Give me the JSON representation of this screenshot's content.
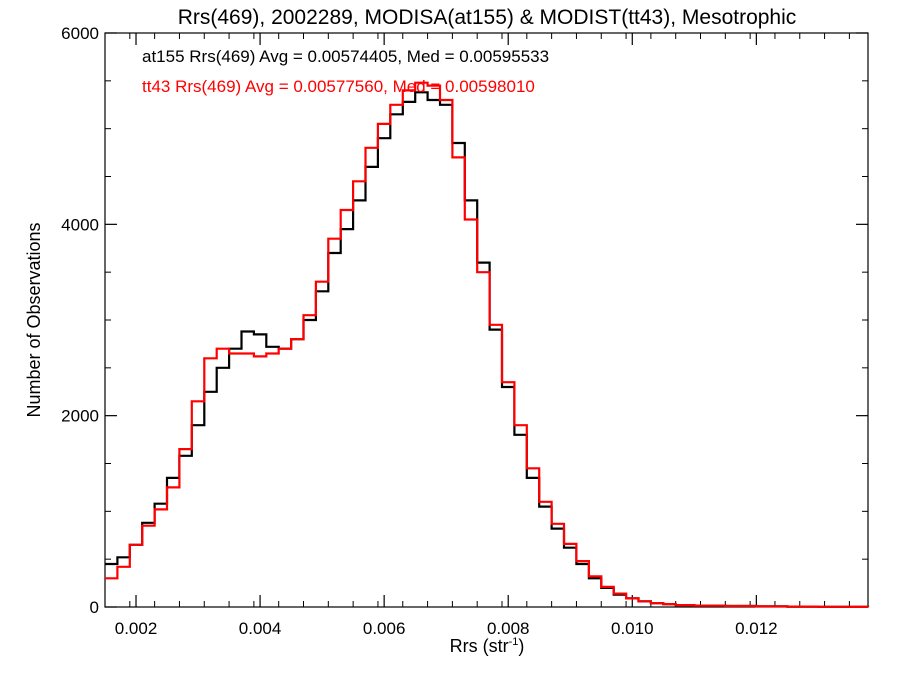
{
  "chart_data": {
    "type": "line",
    "title": "Rrs(469), 2002289, MODISA(at155) & MODIST(tt43), Mesotrophic",
    "xlabel": "Rrs (str",
    "xlabel_sup": "-1",
    "xlabel_end": ")",
    "ylabel": "Number of Observations",
    "xlim": [
      0.0015,
      0.0138
    ],
    "ylim": [
      0,
      6000
    ],
    "x_ticks": [
      0.002,
      0.004,
      0.006,
      0.008,
      0.01,
      0.012
    ],
    "x_tick_labels": [
      "0.002",
      "0.004",
      "0.006",
      "0.008",
      "0.010",
      "0.012"
    ],
    "y_ticks": [
      0,
      2000,
      4000,
      6000
    ],
    "y_tick_labels": [
      "0",
      "2000",
      "4000",
      "6000"
    ],
    "legend_placement": "top-left",
    "series": [
      {
        "name": "at155",
        "legend": "at155 Rrs(469) Avg = 0.00574405, Med = 0.00595533",
        "color": "#000000",
        "points": [
          [
            0.0015,
            450
          ],
          [
            0.0017,
            520
          ],
          [
            0.0019,
            650
          ],
          [
            0.0021,
            880
          ],
          [
            0.0023,
            1080
          ],
          [
            0.0025,
            1350
          ],
          [
            0.0027,
            1580
          ],
          [
            0.0029,
            1900
          ],
          [
            0.0031,
            2250
          ],
          [
            0.0033,
            2500
          ],
          [
            0.0035,
            2700
          ],
          [
            0.0037,
            2880
          ],
          [
            0.0039,
            2850
          ],
          [
            0.0041,
            2720
          ],
          [
            0.0043,
            2700
          ],
          [
            0.0045,
            2800
          ],
          [
            0.0047,
            3000
          ],
          [
            0.0049,
            3300
          ],
          [
            0.0051,
            3700
          ],
          [
            0.0053,
            3950
          ],
          [
            0.0055,
            4250
          ],
          [
            0.0057,
            4600
          ],
          [
            0.0059,
            4900
          ],
          [
            0.0061,
            5150
          ],
          [
            0.0063,
            5280
          ],
          [
            0.0065,
            5380
          ],
          [
            0.0067,
            5300
          ],
          [
            0.0069,
            5250
          ],
          [
            0.0071,
            4850
          ],
          [
            0.0073,
            4250
          ],
          [
            0.0075,
            3600
          ],
          [
            0.0077,
            2900
          ],
          [
            0.0079,
            2300
          ],
          [
            0.0081,
            1800
          ],
          [
            0.0083,
            1350
          ],
          [
            0.0085,
            1050
          ],
          [
            0.0087,
            820
          ],
          [
            0.0089,
            620
          ],
          [
            0.0091,
            450
          ],
          [
            0.0093,
            300
          ],
          [
            0.0095,
            200
          ],
          [
            0.0097,
            130
          ],
          [
            0.0099,
            90
          ],
          [
            0.0101,
            60
          ],
          [
            0.0103,
            40
          ],
          [
            0.0105,
            30
          ],
          [
            0.0107,
            20
          ],
          [
            0.011,
            15
          ],
          [
            0.0115,
            10
          ],
          [
            0.012,
            6
          ],
          [
            0.0125,
            4
          ],
          [
            0.013,
            2
          ],
          [
            0.0135,
            1
          ],
          [
            0.0138,
            0
          ]
        ]
      },
      {
        "name": "tt43",
        "legend": "tt43 Rrs(469) Avg = 0.00577560, Med = 0.00598010",
        "color": "#ff0000",
        "points": [
          [
            0.0015,
            300
          ],
          [
            0.0017,
            420
          ],
          [
            0.0019,
            650
          ],
          [
            0.0021,
            850
          ],
          [
            0.0023,
            1020
          ],
          [
            0.0025,
            1250
          ],
          [
            0.0027,
            1650
          ],
          [
            0.0029,
            2150
          ],
          [
            0.0031,
            2600
          ],
          [
            0.0033,
            2700
          ],
          [
            0.0035,
            2650
          ],
          [
            0.0037,
            2650
          ],
          [
            0.0039,
            2620
          ],
          [
            0.0041,
            2650
          ],
          [
            0.0043,
            2700
          ],
          [
            0.0045,
            2800
          ],
          [
            0.0047,
            3050
          ],
          [
            0.0049,
            3400
          ],
          [
            0.0051,
            3850
          ],
          [
            0.0053,
            4150
          ],
          [
            0.0055,
            4450
          ],
          [
            0.0057,
            4800
          ],
          [
            0.0059,
            5050
          ],
          [
            0.0061,
            5250
          ],
          [
            0.0063,
            5400
          ],
          [
            0.0065,
            5480
          ],
          [
            0.0067,
            5450
          ],
          [
            0.0069,
            5300
          ],
          [
            0.0071,
            4700
          ],
          [
            0.0073,
            4050
          ],
          [
            0.0075,
            3500
          ],
          [
            0.0077,
            2950
          ],
          [
            0.0079,
            2350
          ],
          [
            0.0081,
            1900
          ],
          [
            0.0083,
            1450
          ],
          [
            0.0085,
            1100
          ],
          [
            0.0087,
            870
          ],
          [
            0.0089,
            660
          ],
          [
            0.0091,
            480
          ],
          [
            0.0093,
            320
          ],
          [
            0.0095,
            210
          ],
          [
            0.0097,
            140
          ],
          [
            0.0099,
            90
          ],
          [
            0.0101,
            60
          ],
          [
            0.0103,
            40
          ],
          [
            0.0105,
            30
          ],
          [
            0.0107,
            20
          ],
          [
            0.011,
            15
          ],
          [
            0.0115,
            10
          ],
          [
            0.012,
            6
          ],
          [
            0.0125,
            4
          ],
          [
            0.013,
            2
          ],
          [
            0.0135,
            1
          ],
          [
            0.0138,
            0
          ]
        ]
      }
    ]
  }
}
